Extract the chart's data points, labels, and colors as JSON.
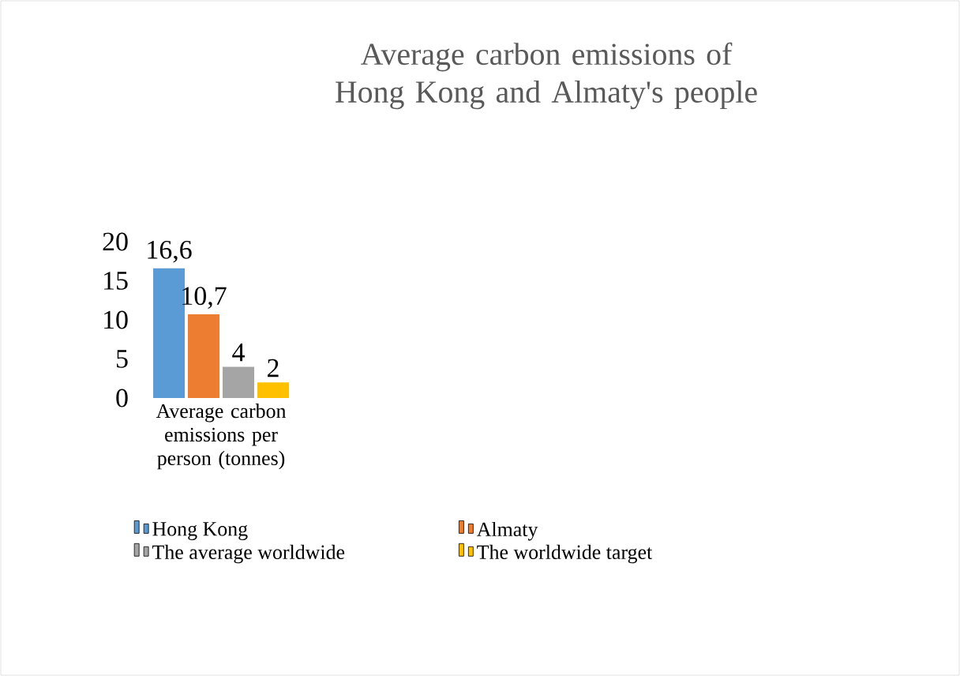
{
  "chart_data": {
    "type": "bar",
    "title": "Average carbon emissions of Hong Kong and Almaty's people",
    "categories": [
      "Average carbon emissions per person (tonnes)"
    ],
    "series": [
      {
        "name": "Hong Kong",
        "color": "#5b9bd5",
        "values": [
          16.6
        ],
        "value_labels": [
          "16,6"
        ]
      },
      {
        "name": "Almaty",
        "color": "#ed7d31",
        "values": [
          10.7
        ],
        "value_labels": [
          "10,7"
        ]
      },
      {
        "name": "The average worldwide",
        "color": "#a5a5a5",
        "values": [
          4
        ],
        "value_labels": [
          "4"
        ]
      },
      {
        "name": "The worldwide target",
        "color": "#ffc000",
        "values": [
          2
        ],
        "value_labels": [
          "2"
        ]
      }
    ],
    "ylim": [
      0,
      20
    ],
    "yticks": [
      0,
      5,
      10,
      15,
      20
    ],
    "grid": false,
    "legend": "bottom"
  }
}
